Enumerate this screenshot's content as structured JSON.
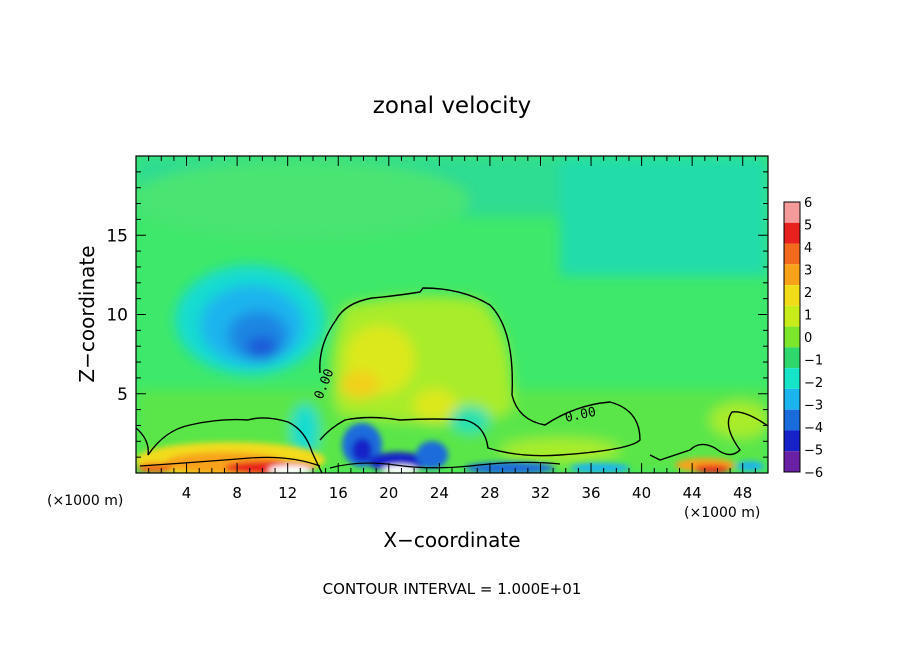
{
  "chart_data": {
    "type": "heatmap",
    "title": "zonal velocity",
    "xlabel": "X−coordinate",
    "ylabel": "Z−coordinate",
    "x_unit_left": "(×1000 m)",
    "x_unit_right": "(×1000 m)",
    "xlim": [
      0,
      50
    ],
    "ylim": [
      0,
      20
    ],
    "x_ticks": [
      4,
      8,
      12,
      16,
      20,
      24,
      28,
      32,
      36,
      40,
      44,
      48
    ],
    "x_tick_labels": [
      "4",
      "8",
      "12",
      "16",
      "20",
      "24",
      "28",
      "32",
      "36",
      "40",
      "44",
      "48"
    ],
    "y_ticks": [
      5,
      10,
      15
    ],
    "y_tick_labels": [
      "5",
      "10",
      "15"
    ],
    "colorbar": {
      "levels": [
        6,
        5,
        4,
        3,
        2,
        1,
        0,
        -1,
        -2,
        -3,
        -4,
        -5,
        -6
      ],
      "labels": [
        "6",
        "5",
        "4",
        "3",
        "2",
        "1",
        "0",
        "−1",
        "−2",
        "−3",
        "−4",
        "−5",
        "−6"
      ],
      "colors": [
        "#f59a9a",
        "#e8201e",
        "#f26a1d",
        "#f8a21a",
        "#f2dc1a",
        "#c8ec1a",
        "#7ce62a",
        "#2ed86c",
        "#16e4c8",
        "#1ab4ee",
        "#1a6cdc",
        "#1622c8",
        "#6a20a4"
      ]
    },
    "contour_labels": [
      "0.00",
      "0.00"
    ],
    "contour_interval_text": "CONTOUR INTERVAL = 1.000E+01",
    "background_color": "#3ee86a"
  }
}
